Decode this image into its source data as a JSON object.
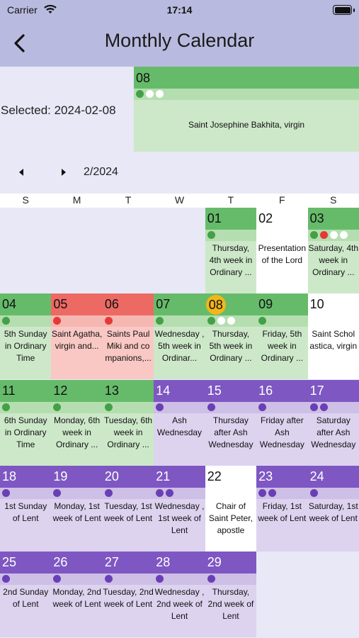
{
  "status": {
    "carrier": "Carrier",
    "time": "17:14"
  },
  "nav": {
    "title": "Monthly Calendar",
    "back_icon": "chevron-left-icon"
  },
  "selected": {
    "label": "Selected: 2024-02-08",
    "day": "08",
    "dots": [
      "#43a047",
      "#ffffff",
      "#ffffff"
    ],
    "description": "Saint Josephine Bakhita, virgin"
  },
  "month_nav": {
    "label": "2/2024",
    "prev_icon": "triangle-left-icon",
    "next_icon": "triangle-right-icon"
  },
  "weekdays": [
    "S",
    "M",
    "T",
    "W",
    "T",
    "F",
    "S"
  ],
  "colors": {
    "green": "#66bb6a",
    "red": "#ec6a63",
    "purple": "#7e57c2",
    "today": "#f2b619"
  },
  "days": [
    {
      "day": "01",
      "color": "green",
      "dots": [
        "#43a047"
      ],
      "desc": "Thursday, 4th week in Ordinary ..."
    },
    {
      "day": "02",
      "color": "white",
      "dots": [],
      "desc": "Presentation of the Lord"
    },
    {
      "day": "03",
      "color": "green",
      "dots": [
        "#43a047",
        "#e53935",
        "#ffffff",
        "#ffffff"
      ],
      "desc": "Saturday, 4th week in Ordinary ..."
    },
    {
      "day": "04",
      "color": "green",
      "dots": [
        "#43a047"
      ],
      "desc": "5th Sunday in Ordinary Time"
    },
    {
      "day": "05",
      "color": "red",
      "dots": [
        "#e53935"
      ],
      "desc": "Saint Agatha, virgin and..."
    },
    {
      "day": "06",
      "color": "red",
      "dots": [
        "#e53935"
      ],
      "desc": "Saints Paul Miki and co mpanions,..."
    },
    {
      "day": "07",
      "color": "green",
      "dots": [
        "#43a047"
      ],
      "desc": "Wednesday , 5th week in Ordinar..."
    },
    {
      "day": "08",
      "color": "green",
      "dots": [
        "#43a047",
        "#ffffff",
        "#ffffff"
      ],
      "desc": "Thursday, 5th week in Ordinary ...",
      "today": true
    },
    {
      "day": "09",
      "color": "green",
      "dots": [
        "#43a047"
      ],
      "desc": "Friday, 5th week in Ordinary ..."
    },
    {
      "day": "10",
      "color": "white",
      "dots": [],
      "desc": "Saint Schol astica, virgin"
    },
    {
      "day": "11",
      "color": "green",
      "dots": [
        "#43a047"
      ],
      "desc": "6th Sunday in Ordinary Time"
    },
    {
      "day": "12",
      "color": "green",
      "dots": [
        "#43a047"
      ],
      "desc": "Monday, 6th week in Ordinary ..."
    },
    {
      "day": "13",
      "color": "green",
      "dots": [
        "#43a047"
      ],
      "desc": "Tuesday, 6th week in Ordinary ..."
    },
    {
      "day": "14",
      "color": "purple",
      "dots": [
        "#6a3fb5"
      ],
      "desc": "Ash Wednesday"
    },
    {
      "day": "15",
      "color": "purple",
      "dots": [
        "#6a3fb5"
      ],
      "desc": "Thursday after Ash Wednesday"
    },
    {
      "day": "16",
      "color": "purple",
      "dots": [
        "#6a3fb5"
      ],
      "desc": "Friday after Ash Wednesday"
    },
    {
      "day": "17",
      "color": "purple",
      "dots": [
        "#6a3fb5",
        "#6a3fb5"
      ],
      "desc": "Saturday after Ash Wednesday"
    },
    {
      "day": "18",
      "color": "purple",
      "dots": [
        "#6a3fb5"
      ],
      "desc": "1st Sunday of Lent"
    },
    {
      "day": "19",
      "color": "purple",
      "dots": [
        "#6a3fb5"
      ],
      "desc": "Monday, 1st week of Lent"
    },
    {
      "day": "20",
      "color": "purple",
      "dots": [
        "#6a3fb5"
      ],
      "desc": "Tuesday, 1st week of Lent"
    },
    {
      "day": "21",
      "color": "purple",
      "dots": [
        "#6a3fb5",
        "#6a3fb5"
      ],
      "desc": "Wednesday , 1st week of Lent"
    },
    {
      "day": "22",
      "color": "white",
      "dots": [],
      "desc": "Chair of Saint Peter, apostle"
    },
    {
      "day": "23",
      "color": "purple",
      "dots": [
        "#6a3fb5",
        "#6a3fb5"
      ],
      "desc": "Friday, 1st week of Lent"
    },
    {
      "day": "24",
      "color": "purple",
      "dots": [
        "#6a3fb5"
      ],
      "desc": "Saturday, 1st week of Lent"
    },
    {
      "day": "25",
      "color": "purple",
      "dots": [
        "#6a3fb5"
      ],
      "desc": "2nd Sunday of Lent"
    },
    {
      "day": "26",
      "color": "purple",
      "dots": [
        "#6a3fb5"
      ],
      "desc": "Monday, 2nd week of Lent"
    },
    {
      "day": "27",
      "color": "purple",
      "dots": [
        "#6a3fb5"
      ],
      "desc": "Tuesday, 2nd week of Lent"
    },
    {
      "day": "28",
      "color": "purple",
      "dots": [
        "#6a3fb5"
      ],
      "desc": "Wednesday , 2nd week of Lent"
    },
    {
      "day": "29",
      "color": "purple",
      "dots": [
        "#6a3fb5"
      ],
      "desc": "Thursday, 2nd week of Lent"
    }
  ]
}
